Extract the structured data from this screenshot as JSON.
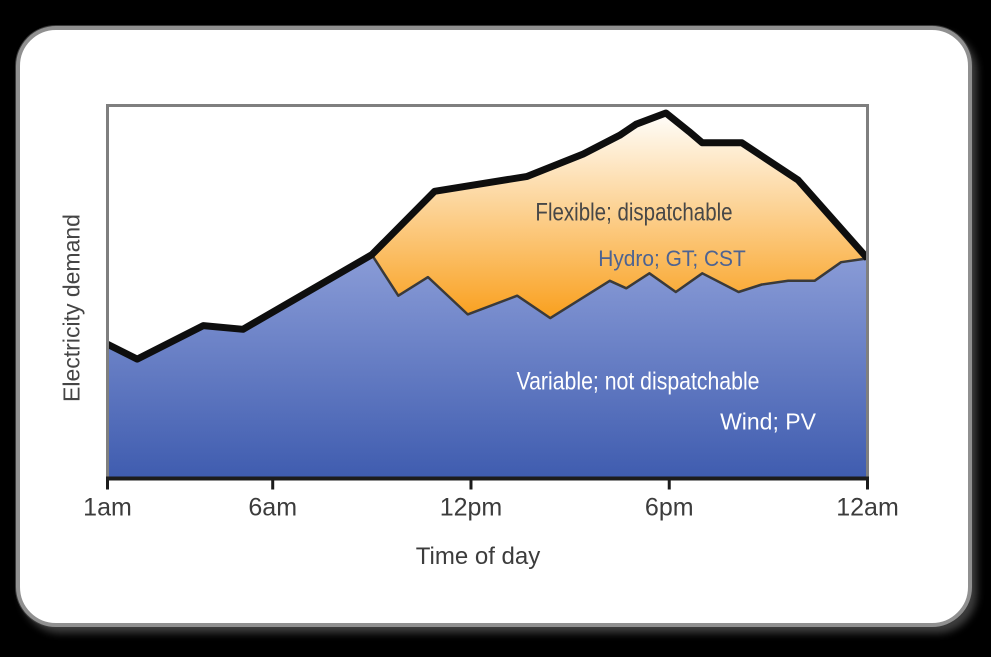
{
  "window": {
    "background": "#000000"
  },
  "card": {
    "background": "#ffffff",
    "border_color": "#909090"
  },
  "chart_data": {
    "type": "area",
    "title": "",
    "xlabel": "Time of day",
    "ylabel": "Electricity demand",
    "x_range_hours": [
      1,
      24
    ],
    "y_range": [
      0,
      100
    ],
    "grid": false,
    "legend_position": "none",
    "axis_color": "#1c1c1c",
    "plot_border_color": "#7f7f7f",
    "x_ticks": [
      {
        "label": "1am",
        "hour": 1
      },
      {
        "label": "6am",
        "hour": 6
      },
      {
        "label": "12pm",
        "hour": 12
      },
      {
        "label": "6pm",
        "hour": 18
      },
      {
        "label": "12am",
        "hour": 24
      }
    ],
    "total_demand_line": {
      "name": "Total electricity demand",
      "color": "#0e0e0e",
      "stroke_width": 7,
      "points": [
        [
          1,
          36
        ],
        [
          1.9,
          32
        ],
        [
          3.9,
          41
        ],
        [
          5.1,
          40
        ],
        [
          9,
          60
        ],
        [
          10.9,
          77
        ],
        [
          13.7,
          81
        ],
        [
          15.4,
          87
        ],
        [
          16.5,
          92
        ],
        [
          17,
          95
        ],
        [
          17.9,
          98
        ],
        [
          18.6,
          93
        ],
        [
          19,
          90
        ],
        [
          20.2,
          90
        ],
        [
          21.9,
          80
        ],
        [
          24,
          59
        ]
      ]
    },
    "series": [
      {
        "id": "variable",
        "name": "Variable; not dispatchable",
        "sublabel": "Wind; PV",
        "label_color": "#ffffff",
        "sublabel_color": "#ffffff",
        "gradient_top": "#8a9cd7",
        "gradient_bottom": "#3f5caf",
        "edge_color": "none",
        "points": [
          [
            1,
            36
          ],
          [
            1.9,
            32
          ],
          [
            3.9,
            41
          ],
          [
            5.1,
            40
          ],
          [
            9,
            60
          ],
          [
            9.8,
            49
          ],
          [
            10.7,
            54
          ],
          [
            11.9,
            44
          ],
          [
            13.4,
            49
          ],
          [
            14.4,
            43
          ],
          [
            16.2,
            53
          ],
          [
            16.7,
            51
          ],
          [
            17.4,
            55
          ],
          [
            18.2,
            50
          ],
          [
            19,
            55
          ],
          [
            20.1,
            50
          ],
          [
            20.8,
            52
          ],
          [
            21.6,
            53
          ],
          [
            22.4,
            53
          ],
          [
            23.2,
            58
          ],
          [
            24,
            59
          ]
        ]
      },
      {
        "id": "flexible",
        "name": "Flexible; dispatchable",
        "sublabel": "Hydro; GT; CST",
        "label_color": "#474747",
        "sublabel_color": "#4d6392",
        "gradient_top": "#fffefb",
        "gradient_bottom": "#f9a01e",
        "edge_color": "#3a3a3a",
        "band": {
          "from_hour": 9,
          "to_hour": 24,
          "upper": "total_demand_line",
          "lower": "variable"
        }
      }
    ]
  }
}
